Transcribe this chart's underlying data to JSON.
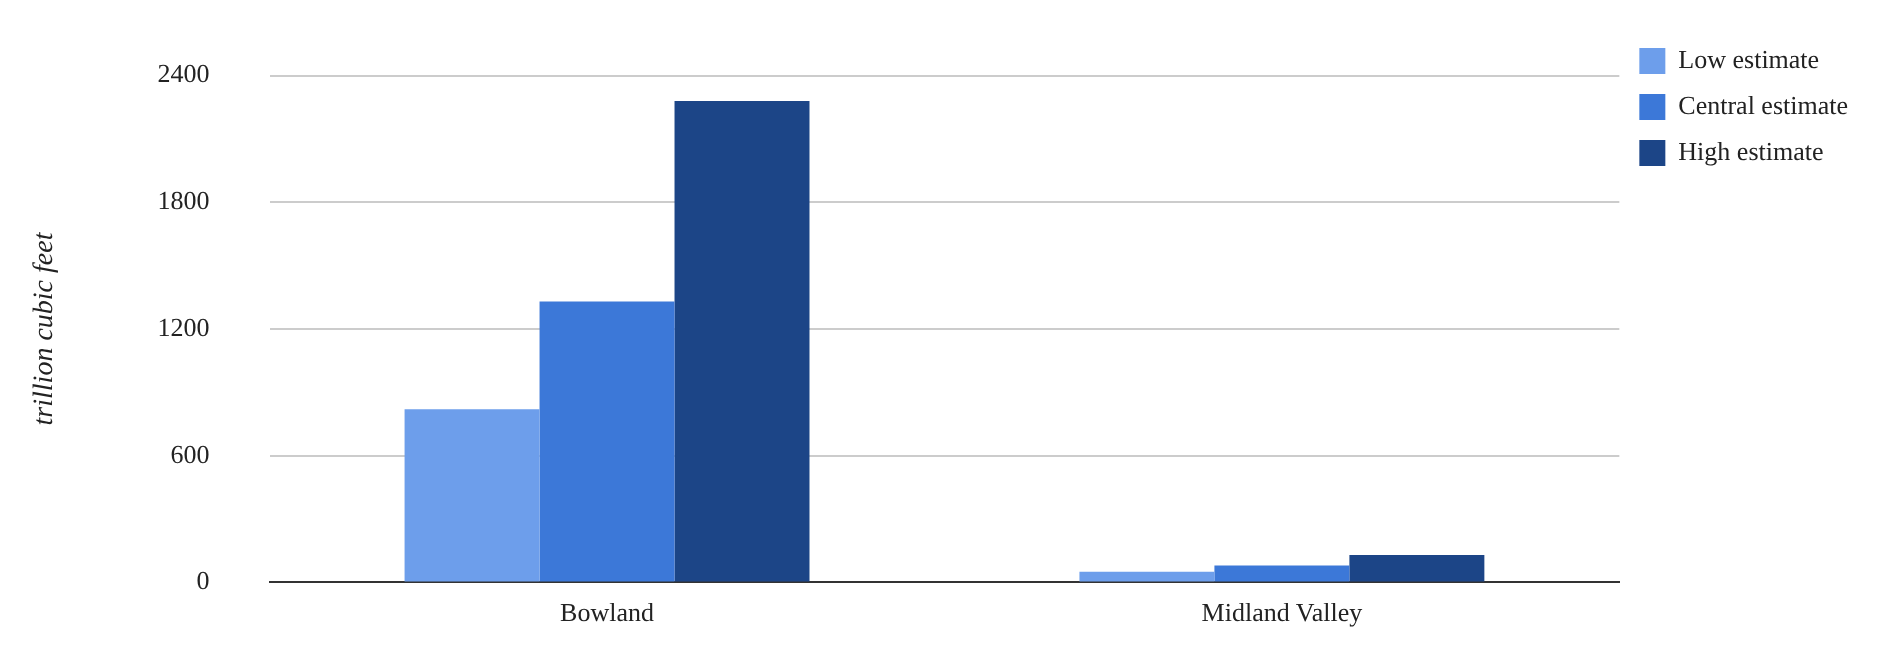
{
  "chart_data": {
    "type": "bar",
    "ylabel": "trillion cubic feet",
    "categories": [
      "Bowland",
      "Midland Valley"
    ],
    "series": [
      {
        "name": "Low estimate",
        "color": "#6d9eeb",
        "values": [
          820,
          50
        ]
      },
      {
        "name": "Central estimate",
        "color": "#3c78d8",
        "values": [
          1330,
          80
        ]
      },
      {
        "name": "High estimate",
        "color": "#1c4587",
        "values": [
          2280,
          130
        ]
      }
    ],
    "ylim": [
      0,
      2400
    ],
    "yticks": [
      0,
      600,
      1200,
      1800,
      2400
    ],
    "grid": "y",
    "legend": "top right"
  }
}
